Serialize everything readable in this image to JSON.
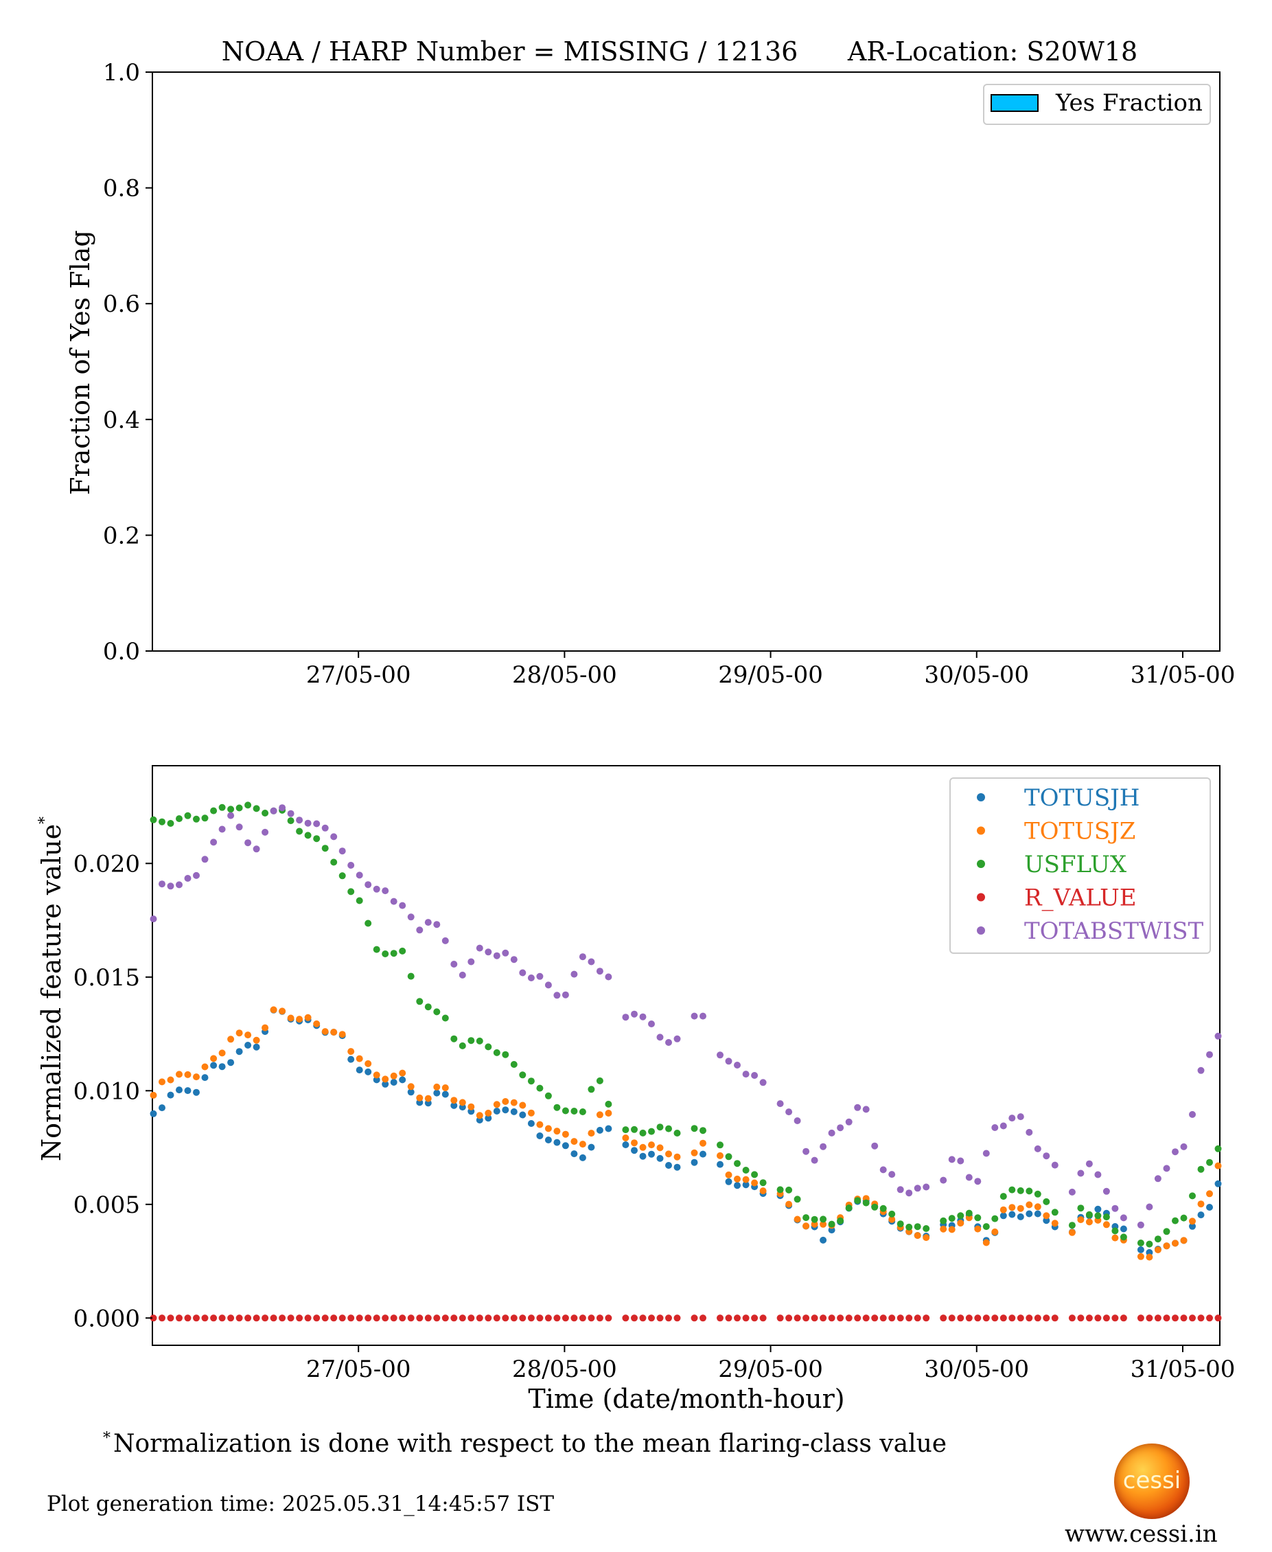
{
  "chart_data": [
    {
      "type": "bar",
      "title": "NOAA / HARP Number = MISSING / 12136      AR-Location: S20W18",
      "xlabel": "",
      "ylabel": "Fraction of Yes Flag",
      "ylim": [
        0.0,
        1.0
      ],
      "yticks": [
        "0.0",
        "0.2",
        "0.4",
        "0.6",
        "0.8",
        "1.0"
      ],
      "xticks": [
        "27/05-00",
        "28/05-00",
        "29/05-00",
        "30/05-00",
        "31/05-00"
      ],
      "legend": [
        {
          "name": "Yes Fraction",
          "color": "#00bfff"
        }
      ],
      "legend_position": "top-right",
      "values": [],
      "grid": false
    },
    {
      "type": "scatter",
      "xlabel": "Time (date/month-hour)",
      "ylabel": "Normalized feature value",
      "ylabel_sup": "*",
      "xlim_days": [
        26.0,
        31.18
      ],
      "ylim": [
        -0.0012,
        0.0243
      ],
      "yticks": [
        "0.000",
        "0.005",
        "0.010",
        "0.015",
        "0.020"
      ],
      "xticks": [
        "27/05-00",
        "28/05-00",
        "29/05-00",
        "30/05-00",
        "31/05-00"
      ],
      "legend_position": "top-right",
      "grid": false,
      "series": [
        {
          "name": "TOTUSJH",
          "color": "#1f77b4",
          "knots": [
            [
              26.0,
              0.0089
            ],
            [
              26.1,
              0.0099
            ],
            [
              26.2,
              0.01
            ],
            [
              26.3,
              0.011
            ],
            [
              26.5,
              0.012
            ],
            [
              26.6,
              0.0135
            ],
            [
              26.75,
              0.013
            ],
            [
              26.9,
              0.0125
            ],
            [
              27.0,
              0.011
            ],
            [
              27.1,
              0.0104
            ],
            [
              27.2,
              0.0104
            ],
            [
              27.3,
              0.0096
            ],
            [
              27.35,
              0.0094
            ],
            [
              27.4,
              0.01
            ],
            [
              27.5,
              0.0092
            ],
            [
              27.6,
              0.0088
            ],
            [
              27.75,
              0.0092
            ],
            [
              27.9,
              0.008
            ],
            [
              28.0,
              0.0075
            ],
            [
              28.1,
              0.0071
            ],
            [
              28.2,
              0.0085
            ],
            [
              28.3,
              0.0075
            ],
            [
              28.4,
              0.0072
            ],
            [
              28.5,
              0.0068
            ],
            [
              28.6,
              0.0066
            ],
            [
              28.7,
              0.0075
            ],
            [
              28.8,
              0.006
            ],
            [
              29.0,
              0.0055
            ],
            [
              29.2,
              0.004
            ],
            [
              29.25,
              0.0034
            ],
            [
              29.3,
              0.004
            ],
            [
              29.45,
              0.0053
            ],
            [
              29.55,
              0.0045
            ],
            [
              29.7,
              0.0036
            ],
            [
              29.85,
              0.004
            ],
            [
              29.95,
              0.0045
            ],
            [
              30.05,
              0.0035
            ],
            [
              30.15,
              0.0045
            ],
            [
              30.25,
              0.0046
            ],
            [
              30.35,
              0.0043
            ],
            [
              30.45,
              0.0035
            ],
            [
              30.5,
              0.0045
            ],
            [
              30.6,
              0.0047
            ],
            [
              30.7,
              0.004
            ],
            [
              30.8,
              0.003
            ],
            [
              30.9,
              0.003
            ],
            [
              31.0,
              0.0035
            ],
            [
              31.1,
              0.0045
            ],
            [
              31.18,
              0.006
            ]
          ]
        },
        {
          "name": "TOTUSJZ",
          "color": "#ff7f0e",
          "knots": [
            [
              26.0,
              0.0097
            ],
            [
              26.05,
              0.0105
            ],
            [
              26.2,
              0.0107
            ],
            [
              26.3,
              0.0113
            ],
            [
              26.4,
              0.0125
            ],
            [
              26.5,
              0.0123
            ],
            [
              26.6,
              0.0135
            ],
            [
              26.75,
              0.0131
            ],
            [
              26.9,
              0.0125
            ],
            [
              27.0,
              0.0115
            ],
            [
              27.1,
              0.0106
            ],
            [
              27.2,
              0.0107
            ],
            [
              27.3,
              0.0098
            ],
            [
              27.35,
              0.0096
            ],
            [
              27.4,
              0.0103
            ],
            [
              27.5,
              0.0094
            ],
            [
              27.6,
              0.009
            ],
            [
              27.75,
              0.0096
            ],
            [
              27.9,
              0.0085
            ],
            [
              28.0,
              0.008
            ],
            [
              28.1,
              0.0077
            ],
            [
              28.2,
              0.0092
            ],
            [
              28.3,
              0.0078
            ],
            [
              28.4,
              0.0076
            ],
            [
              28.5,
              0.0073
            ],
            [
              28.6,
              0.007
            ],
            [
              28.7,
              0.008
            ],
            [
              28.8,
              0.0063
            ],
            [
              29.0,
              0.0056
            ],
            [
              29.2,
              0.004
            ],
            [
              29.3,
              0.0042
            ],
            [
              29.45,
              0.0054
            ],
            [
              29.55,
              0.0046
            ],
            [
              29.7,
              0.0036
            ],
            [
              29.85,
              0.0038
            ],
            [
              29.95,
              0.0044
            ],
            [
              30.05,
              0.0034
            ],
            [
              30.15,
              0.0048
            ],
            [
              30.25,
              0.005
            ],
            [
              30.35,
              0.0045
            ],
            [
              30.45,
              0.0035
            ],
            [
              30.5,
              0.0044
            ],
            [
              30.6,
              0.0042
            ],
            [
              30.7,
              0.0035
            ],
            [
              30.8,
              0.0027
            ],
            [
              30.9,
              0.003
            ],
            [
              31.0,
              0.0035
            ],
            [
              31.1,
              0.005
            ],
            [
              31.18,
              0.0068
            ]
          ]
        },
        {
          "name": "USFLUX",
          "color": "#2ca02c",
          "knots": [
            [
              26.0,
              0.0218
            ],
            [
              26.2,
              0.022
            ],
            [
              26.4,
              0.0225
            ],
            [
              26.6,
              0.0223
            ],
            [
              26.8,
              0.021
            ],
            [
              27.0,
              0.0185
            ],
            [
              27.1,
              0.016
            ],
            [
              27.2,
              0.0162
            ],
            [
              27.3,
              0.014
            ],
            [
              27.4,
              0.0133
            ],
            [
              27.5,
              0.012
            ],
            [
              27.6,
              0.0122
            ],
            [
              27.7,
              0.0115
            ],
            [
              27.9,
              0.01
            ],
            [
              28.0,
              0.009
            ],
            [
              28.1,
              0.0092
            ],
            [
              28.15,
              0.0105
            ],
            [
              28.25,
              0.009
            ],
            [
              28.3,
              0.0082
            ],
            [
              28.5,
              0.0083
            ],
            [
              28.6,
              0.0082
            ],
            [
              28.7,
              0.0083
            ],
            [
              28.8,
              0.007
            ],
            [
              29.0,
              0.0058
            ],
            [
              29.1,
              0.0055
            ],
            [
              29.2,
              0.0043
            ],
            [
              29.3,
              0.0042
            ],
            [
              29.45,
              0.0052
            ],
            [
              29.55,
              0.0047
            ],
            [
              29.7,
              0.0039
            ],
            [
              29.85,
              0.0042
            ],
            [
              29.95,
              0.0047
            ],
            [
              30.05,
              0.004
            ],
            [
              30.15,
              0.0055
            ],
            [
              30.25,
              0.0057
            ],
            [
              30.35,
              0.005
            ],
            [
              30.45,
              0.0038
            ],
            [
              30.5,
              0.0048
            ],
            [
              30.6,
              0.0045
            ],
            [
              30.7,
              0.0037
            ],
            [
              30.8,
              0.0032
            ],
            [
              30.9,
              0.0036
            ],
            [
              31.0,
              0.0045
            ],
            [
              31.1,
              0.0065
            ],
            [
              31.18,
              0.0076
            ]
          ]
        },
        {
          "name": "R_VALUE",
          "color": "#d62728",
          "knots": [
            [
              26.0,
              0.0
            ],
            [
              31.18,
              0.0
            ]
          ]
        },
        {
          "name": "TOTABSTWIST",
          "color": "#9467bd",
          "knots": [
            [
              26.0,
              0.0175
            ],
            [
              26.05,
              0.019
            ],
            [
              26.2,
              0.0193
            ],
            [
              26.3,
              0.021
            ],
            [
              26.4,
              0.0222
            ],
            [
              26.45,
              0.021
            ],
            [
              26.5,
              0.0205
            ],
            [
              26.6,
              0.0225
            ],
            [
              26.7,
              0.022
            ],
            [
              26.85,
              0.0215
            ],
            [
              27.0,
              0.0195
            ],
            [
              27.1,
              0.0188
            ],
            [
              27.2,
              0.0183
            ],
            [
              27.3,
              0.017
            ],
            [
              27.35,
              0.0176
            ],
            [
              27.5,
              0.0152
            ],
            [
              27.6,
              0.0162
            ],
            [
              27.7,
              0.016
            ],
            [
              27.85,
              0.015
            ],
            [
              28.0,
              0.0142
            ],
            [
              28.1,
              0.016
            ],
            [
              28.2,
              0.015
            ],
            [
              28.3,
              0.0133
            ],
            [
              28.4,
              0.0132
            ],
            [
              28.5,
              0.012
            ],
            [
              28.65,
              0.0133
            ],
            [
              28.8,
              0.0112
            ],
            [
              28.9,
              0.0108
            ],
            [
              29.0,
              0.01
            ],
            [
              29.1,
              0.009
            ],
            [
              29.2,
              0.007
            ],
            [
              29.35,
              0.0085
            ],
            [
              29.45,
              0.0093
            ],
            [
              29.55,
              0.0065
            ],
            [
              29.65,
              0.0056
            ],
            [
              29.8,
              0.0057
            ],
            [
              29.9,
              0.007
            ],
            [
              30.0,
              0.006
            ],
            [
              30.1,
              0.0085
            ],
            [
              30.2,
              0.0088
            ],
            [
              30.35,
              0.007
            ],
            [
              30.45,
              0.0055
            ],
            [
              30.55,
              0.0068
            ],
            [
              30.7,
              0.0045
            ],
            [
              30.8,
              0.004
            ],
            [
              30.9,
              0.0065
            ],
            [
              31.0,
              0.0075
            ],
            [
              31.1,
              0.011
            ],
            [
              31.18,
              0.0125
            ]
          ]
        }
      ]
    }
  ],
  "footnote": {
    "sup": "*",
    "text": "Normalization is done with respect to the mean flaring-class value"
  },
  "generation_time": "Plot generation time: 2025.05.31_14:45:57 IST",
  "logo": {
    "text": "cessi"
  },
  "website": "www.cessi.in"
}
